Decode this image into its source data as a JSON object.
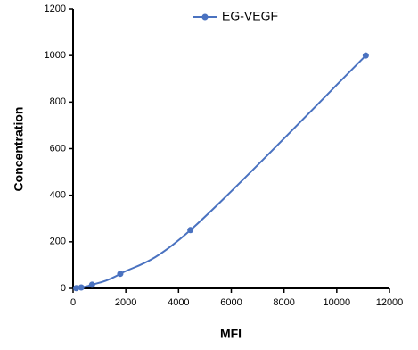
{
  "chart_data": {
    "type": "line",
    "x_label": "MFI",
    "y_label": "Concentration",
    "x": [
      120,
      310,
      720,
      1790,
      4450,
      11100
    ],
    "series": [
      {
        "name": "EG-VEGF",
        "color": "#4a72c0",
        "values": [
          0.98,
          3.9,
          15.6,
          62.5,
          250,
          1000
        ]
      }
    ],
    "xlim": [
      0,
      12000
    ],
    "xticks": [
      0,
      2000,
      4000,
      6000,
      8000,
      10000,
      12000
    ],
    "ylim": [
      0,
      1200
    ],
    "yticks": [
      0,
      200,
      400,
      600,
      800,
      1000,
      1200
    ],
    "smooth": true,
    "legend": "top"
  }
}
